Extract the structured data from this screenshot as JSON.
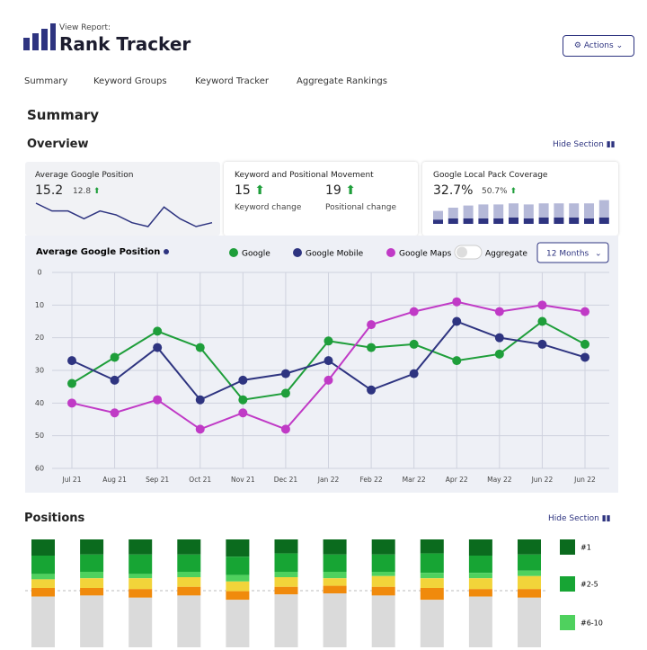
{
  "header": {
    "subtitle": "View Report:",
    "title": "Rank Tracker",
    "button": "Actions"
  },
  "nav": [
    "Summary",
    "Keyword Groups",
    "Keyword Tracker",
    "Aggregate Rankings"
  ],
  "summary_title": "Summary",
  "overview": {
    "title": "Overview",
    "hide": "Hide Section"
  },
  "cards": [
    {
      "title": "Average Google Position",
      "value": "15.2",
      "change": "12.8"
    },
    {
      "title": "Keyword and Positional Movement",
      "metrics": [
        {
          "value": "15",
          "label": "Keyword change"
        },
        {
          "value": "19",
          "label": "Positional change"
        }
      ]
    },
    {
      "title": "Google Local Pack Coverage",
      "value": "32.7%",
      "change": "50.7%"
    }
  ],
  "controls": {
    "aggregate": "Aggregate",
    "period": "12 Months"
  },
  "positions": {
    "title": "Positions",
    "hide": "Hide Section"
  },
  "chart_data": [
    {
      "type": "line",
      "title": "Average Google Position",
      "categories": [
        "Jul 21",
        "Aug 21",
        "Sep 21",
        "Oct 21",
        "Nov 21",
        "Dec 21",
        "Jan 22",
        "Feb 22",
        "Mar 22",
        "Apr 22",
        "May 22",
        "Jun 22",
        "Jun 22"
      ],
      "series": [
        {
          "name": "Google",
          "color": "#1e9e3a",
          "values": [
            34,
            26,
            18,
            23,
            39,
            37,
            21,
            23,
            22,
            27,
            25,
            15,
            22
          ]
        },
        {
          "name": "Google Mobile",
          "color": "#2e3480",
          "values": [
            27,
            33,
            23,
            39,
            33,
            31,
            27,
            36,
            31,
            15,
            20,
            22,
            26
          ]
        },
        {
          "name": "Google Maps",
          "color": "#c03ac6",
          "values": [
            40,
            43,
            39,
            48,
            43,
            48,
            33,
            16,
            12,
            9,
            12,
            10,
            12
          ]
        }
      ],
      "ylim": [
        60,
        0
      ],
      "yticks": [
        0,
        10,
        20,
        30,
        40,
        50,
        60
      ],
      "grid": true
    },
    {
      "type": "stacked-bar",
      "series": [
        {
          "name": "#1",
          "color": "#0b6b1e",
          "values": [
            15,
            14,
            14,
            14,
            16,
            13,
            14,
            14,
            13,
            15,
            14
          ]
        },
        {
          "name": "#2-5",
          "color": "#17a534",
          "values": [
            17,
            16,
            18,
            16,
            17,
            17,
            16,
            16,
            18,
            16,
            15
          ]
        },
        {
          "name": "#6-10",
          "color": "#4fd15e",
          "values": [
            5,
            6,
            4,
            5,
            6,
            5,
            6,
            4,
            5,
            5,
            5
          ]
        },
        {
          "color": "#f2d43a",
          "values": [
            8,
            9,
            10,
            9,
            9,
            9,
            7,
            10,
            9,
            10,
            12
          ]
        },
        {
          "color": "#f08a0c",
          "values": [
            8,
            7,
            8,
            8,
            8,
            7,
            7,
            8,
            11,
            7,
            8
          ]
        },
        {
          "color": "#dadada",
          "values": [
            47,
            48,
            46,
            48,
            44,
            49,
            50,
            48,
            44,
            47,
            46
          ]
        }
      ]
    },
    {
      "type": "sparkline",
      "color": "#2e3480",
      "values": [
        16,
        14,
        14,
        12,
        14,
        13,
        11,
        10,
        15,
        12,
        10,
        11
      ]
    },
    {
      "type": "mini-bar",
      "series": [
        {
          "color": "#2e3480",
          "values": [
            4,
            5,
            5,
            5,
            5,
            6,
            5,
            6,
            6,
            6,
            5,
            6
          ]
        },
        {
          "color": "#b5b9d8",
          "values": [
            8,
            10,
            12,
            13,
            13,
            13,
            13,
            13,
            13,
            13,
            14,
            16
          ]
        }
      ]
    }
  ]
}
